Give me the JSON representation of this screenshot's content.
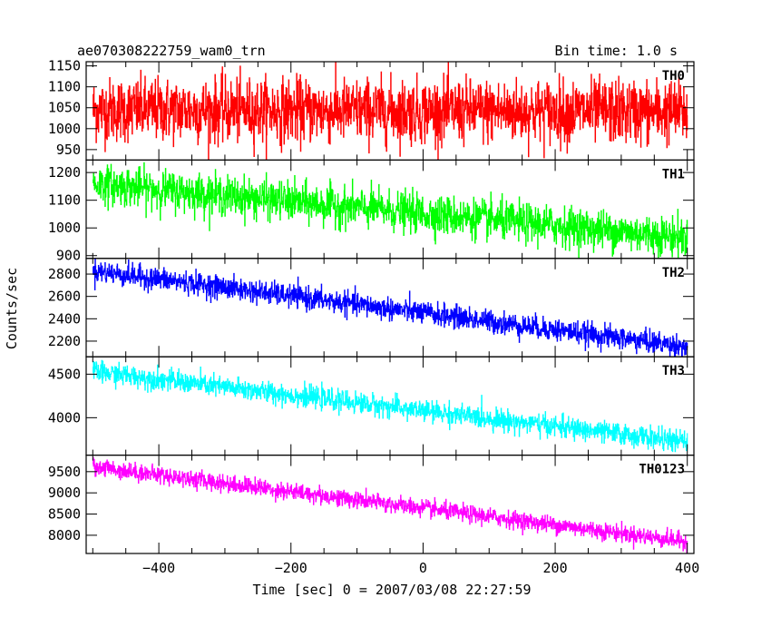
{
  "header": {
    "title": "ae070308222759_wam0_trn",
    "bin_time": "Bin time: 1.0 s"
  },
  "chart_data": {
    "type": "line",
    "xlabel": "Time [sec] 0 = 2007/03/08 22:27:59",
    "ylabel": "Counts/sec",
    "xlim": [
      -510,
      410
    ],
    "x_ticks": [
      -400,
      -200,
      0,
      200,
      400
    ],
    "x_tick_labels": [
      "−400",
      "−200",
      "0",
      "200",
      "400"
    ],
    "x_start": -500,
    "x_end": 400,
    "panels": [
      {
        "name": "TH0",
        "color": "#ff0000",
        "ylim": [
          925,
          1160
        ],
        "y_ticks": [
          950,
          1000,
          1050,
          1100,
          1150
        ],
        "y_tick_labels": [
          "950",
          "1000",
          "1050",
          "1100",
          "1150"
        ],
        "trend_start": 1045,
        "trend_end": 1040,
        "noise": 38
      },
      {
        "name": "TH1",
        "color": "#00ff00",
        "ylim": [
          890,
          1245
        ],
        "y_ticks": [
          900,
          1000,
          1100,
          1200
        ],
        "y_tick_labels": [
          "900",
          "1000",
          "1100",
          "1200"
        ],
        "trend_start": 1160,
        "trend_end": 965,
        "noise": 35
      },
      {
        "name": "TH2",
        "color": "#0000ff",
        "ylim": [
          2060,
          2940
        ],
        "y_ticks": [
          2200,
          2400,
          2600,
          2800
        ],
        "y_tick_labels": [
          "2200",
          "2400",
          "2600",
          "2800"
        ],
        "trend_start": 2830,
        "trend_end": 2150,
        "noise": 50
      },
      {
        "name": "TH3",
        "color": "#00ffff",
        "ylim": [
          3570,
          4700
        ],
        "y_ticks": [
          4000,
          4500
        ],
        "y_tick_labels": [
          "4000",
          "4500"
        ],
        "trend_start": 4530,
        "trend_end": 3720,
        "noise": 60
      },
      {
        "name": "TH0123",
        "color": "#ff00ff",
        "ylim": [
          7570,
          9890
        ],
        "y_ticks": [
          8000,
          8500,
          9000,
          9500
        ],
        "y_tick_labels": [
          "8000",
          "8500",
          "9000",
          "9500"
        ],
        "trend_start": 9620,
        "trend_end": 7850,
        "noise": 100
      }
    ]
  }
}
